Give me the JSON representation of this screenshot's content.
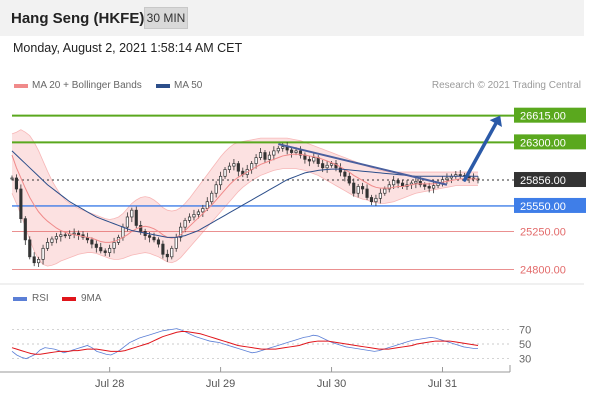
{
  "header": {
    "title": "Hang Seng (HKFE)",
    "interval": "30 MIN"
  },
  "datetime": "Monday, August 2, 2021 1:58:14 AM CET",
  "legend": {
    "items": [
      {
        "label": "MA 20 + Bollinger Bands",
        "color": "#f08a8a"
      },
      {
        "label": "MA 50",
        "color": "#2c4e8a"
      }
    ],
    "credit": "Research © 2021 Trading Central"
  },
  "rsi_legend": {
    "items": [
      {
        "label": "RSI",
        "color": "#5b7fd6"
      },
      {
        "label": "9MA",
        "color": "#e0151b"
      }
    ]
  },
  "colors": {
    "resistance": "#5aa81e",
    "last_price": "#333333",
    "pivot": "#3f7ee8",
    "support": "#e36b6b",
    "arrow": "#2b5aa8",
    "up_candle": "#ffffff",
    "down_candle": "#333333"
  },
  "chart_data": [
    {
      "type": "line",
      "title": "Hang Seng (HKFE)",
      "ylim": [
        24700,
        26800
      ],
      "x_ticks": [
        "Jul 28",
        "Jul 29",
        "Jul 30",
        "Jul 31"
      ],
      "levels": [
        {
          "value": 26615,
          "label": "26615.00",
          "kind": "resistance"
        },
        {
          "value": 26300,
          "label": "26300.00",
          "kind": "resistance"
        },
        {
          "value": 25856,
          "label": "25856.00",
          "kind": "last"
        },
        {
          "value": 25550,
          "label": "25550.00",
          "kind": "pivot"
        },
        {
          "value": 25250,
          "label": "25250.00",
          "kind": "support"
        },
        {
          "value": 24800,
          "label": "24800.00",
          "kind": "support"
        }
      ],
      "closes": [
        25880,
        25750,
        25400,
        25150,
        24950,
        24880,
        24920,
        25050,
        25120,
        25160,
        25190,
        25210,
        25200,
        25220,
        25230,
        25210,
        25180,
        25150,
        25100,
        25060,
        25020,
        25000,
        25050,
        25120,
        25180,
        25300,
        25420,
        25500,
        25320,
        25250,
        25200,
        25180,
        25150,
        25100,
        24980,
        24950,
        25050,
        25180,
        25300,
        25380,
        25420,
        25450,
        25480,
        25520,
        25600,
        25700,
        25800,
        25900,
        25980,
        26020,
        26050,
        25960,
        25920,
        25980,
        26050,
        26120,
        26180,
        26100,
        26150,
        26200,
        26230,
        26250,
        26210,
        26180,
        26200,
        26150,
        26100,
        26080,
        26120,
        26050,
        26000,
        26030,
        26050,
        26000,
        25950,
        25900,
        25820,
        25700,
        25780,
        25750,
        25650,
        25600,
        25640,
        25700,
        25750,
        25800,
        25850,
        25820,
        25780,
        25800,
        25820,
        25840,
        25800,
        25780,
        25760,
        25790,
        25820,
        25860,
        25880,
        25900,
        25920,
        25910,
        25900,
        25880,
        25870,
        25856
      ],
      "ma20": [
        26150,
        26000,
        25880,
        25760,
        25650,
        25560,
        25480,
        25420,
        25370,
        25330,
        25290,
        25260,
        25240,
        25220,
        25210,
        25200,
        25190,
        25180,
        25170,
        25150,
        25130,
        25120,
        25120,
        25130,
        25150,
        25180,
        25210,
        25250,
        25280,
        25300,
        25310,
        25300,
        25280,
        25250,
        25210,
        25180,
        25170,
        25180,
        25210,
        25260,
        25310,
        25360,
        25410,
        25460,
        25510,
        25560,
        25620,
        25680,
        25740,
        25800,
        25850,
        25890,
        25920,
        25950,
        25980,
        26010,
        26040,
        26060,
        26080,
        26100,
        26120,
        26140,
        26150,
        26160,
        26160,
        26160,
        26150,
        26140,
        26130,
        26120,
        26100,
        26080,
        26060,
        26040,
        26010,
        25980,
        25950,
        25910,
        25880,
        25850,
        25820,
        25790,
        25770,
        25760,
        25760,
        25760,
        25770,
        25780,
        25780,
        25790,
        25800,
        25810,
        25810,
        25810,
        25810,
        25810,
        25820,
        25830,
        25840,
        25850,
        25860,
        25870,
        25870,
        25870,
        25870,
        25865
      ],
      "bb_upper": [
        26400,
        26420,
        26450,
        26420,
        26380,
        26300,
        26200,
        26080,
        25960,
        25850,
        25760,
        25680,
        25620,
        25580,
        25550,
        25520,
        25500,
        25480,
        25460,
        25440,
        25420,
        25400,
        25390,
        25400,
        25420,
        25460,
        25520,
        25580,
        25620,
        25650,
        25660,
        25650,
        25620,
        25580,
        25530,
        25500,
        25490,
        25500,
        25530,
        25580,
        25640,
        25710,
        25780,
        25850,
        25920,
        25990,
        26060,
        26130,
        26190,
        26240,
        26280,
        26300,
        26310,
        26320,
        26330,
        26340,
        26350,
        26350,
        26350,
        26350,
        26350,
        26350,
        26350,
        26340,
        26330,
        26320,
        26300,
        26280,
        26260,
        26240,
        26220,
        26200,
        26180,
        26160,
        26140,
        26120,
        26100,
        26080,
        26060,
        26040,
        26020,
        26000,
        25980,
        25970,
        25960,
        25950,
        25950,
        25950,
        25950,
        25950,
        25950,
        25950,
        25950,
        25950,
        25950,
        25950,
        25950,
        25950,
        25950,
        25950,
        25950,
        25950,
        25950,
        25950,
        25950,
        25950
      ],
      "bb_lower": [
        25700,
        25580,
        25450,
        25300,
        25150,
        25020,
        24920,
        24860,
        24840,
        24850,
        24870,
        24900,
        24920,
        24940,
        24960,
        24980,
        24990,
        25000,
        25000,
        24990,
        24970,
        24950,
        24930,
        24920,
        24920,
        24930,
        24950,
        24970,
        24980,
        24990,
        25000,
        24990,
        24970,
        24950,
        24920,
        24890,
        24880,
        24900,
        24940,
        25000,
        25060,
        25120,
        25180,
        25240,
        25300,
        25360,
        25420,
        25480,
        25540,
        25600,
        25660,
        25720,
        25770,
        25810,
        25850,
        25880,
        25910,
        25930,
        25950,
        25970,
        25980,
        25990,
        25990,
        25990,
        25990,
        25980,
        25970,
        25950,
        25930,
        25910,
        25880,
        25850,
        25820,
        25790,
        25760,
        25730,
        25700,
        25670,
        25650,
        25630,
        25620,
        25600,
        25590,
        25580,
        25580,
        25590,
        25600,
        25620,
        25640,
        25660,
        25680,
        25700,
        25710,
        25720,
        25730,
        25740,
        25750,
        25760,
        25770,
        25780,
        25790,
        25790,
        25790,
        25790,
        25790,
        25790
      ],
      "ma50": [
        26200,
        26150,
        26100,
        26050,
        26000,
        25950,
        25900,
        25850,
        25800,
        25760,
        25720,
        25680,
        25640,
        25600,
        25570,
        25540,
        25510,
        25480,
        25450,
        25420,
        25400,
        25380,
        25360,
        25340,
        25320,
        25300,
        25280,
        25260,
        25250,
        25240,
        25230,
        25220,
        25210,
        25200,
        25190,
        25180,
        25180,
        25180,
        25190,
        25200,
        25220,
        25240,
        25260,
        25290,
        25320,
        25350,
        25380,
        25410,
        25440,
        25470,
        25500,
        25530,
        25560,
        25590,
        25620,
        25650,
        25680,
        25710,
        25740,
        25770,
        25800,
        25830,
        25860,
        25880,
        25900,
        25920,
        25940,
        25950,
        25960,
        25970,
        25975,
        25980,
        25985,
        25985,
        25985,
        25980,
        25975,
        25970,
        25965,
        25960,
        25955,
        25950,
        25945,
        25940,
        25935,
        25930,
        25925,
        25920,
        25915,
        25910,
        25905,
        25900,
        25900,
        25900,
        25900,
        25900,
        25900,
        25900,
        25900,
        25900,
        25900,
        25900,
        25900,
        25900,
        25900,
        25900
      ],
      "trendline": [
        {
          "x": 60,
          "y": 26280
        },
        {
          "x": 98,
          "y": 25800
        }
      ],
      "projection_arrow": [
        {
          "x": 102,
          "y": 25856
        },
        {
          "x": 110,
          "y": 26615
        }
      ]
    },
    {
      "type": "line",
      "title": "RSI",
      "ylim": [
        20,
        80
      ],
      "y_ticks": [
        70,
        50,
        30
      ],
      "series": [
        {
          "name": "RSI",
          "values": [
            40,
            35,
            32,
            30,
            33,
            36,
            42,
            45,
            44,
            43,
            41,
            38,
            40,
            42,
            44,
            46,
            48,
            45,
            40,
            38,
            36,
            35,
            38,
            42,
            47,
            52,
            55,
            58,
            60,
            62,
            64,
            66,
            68,
            69,
            70,
            71,
            69,
            66,
            63,
            60,
            58,
            56,
            54,
            53,
            52,
            50,
            48,
            46,
            44,
            42,
            40,
            38,
            39,
            41,
            43,
            45,
            47,
            49,
            51,
            53,
            55,
            57,
            59,
            60,
            62,
            61,
            58,
            55,
            52,
            50,
            48,
            46,
            45,
            44,
            43,
            42,
            41,
            40,
            41,
            43,
            45,
            47,
            49,
            51,
            53,
            55,
            56,
            57,
            58,
            59,
            58,
            56,
            54,
            52,
            50,
            48,
            46,
            45,
            44,
            44
          ]
        },
        {
          "name": "9MA",
          "values": [
            45,
            43,
            41,
            39,
            37,
            36,
            36,
            37,
            38,
            39,
            40,
            40,
            40,
            41,
            41,
            42,
            43,
            43,
            43,
            42,
            41,
            40,
            40,
            40,
            41,
            43,
            45,
            47,
            49,
            51,
            54,
            57,
            60,
            62,
            64,
            66,
            67,
            67,
            66,
            65,
            64,
            62,
            60,
            58,
            56,
            54,
            52,
            50,
            48,
            47,
            46,
            45,
            44,
            43,
            43,
            43,
            43,
            44,
            45,
            46,
            47,
            48,
            50,
            52,
            53,
            54,
            54,
            54,
            53,
            52,
            51,
            50,
            49,
            48,
            47,
            46,
            45,
            44,
            43,
            43,
            43,
            44,
            45,
            46,
            47,
            48,
            50,
            51,
            52,
            53,
            54,
            54,
            54,
            54,
            53,
            52,
            51,
            50,
            49,
            48
          ]
        }
      ]
    }
  ]
}
